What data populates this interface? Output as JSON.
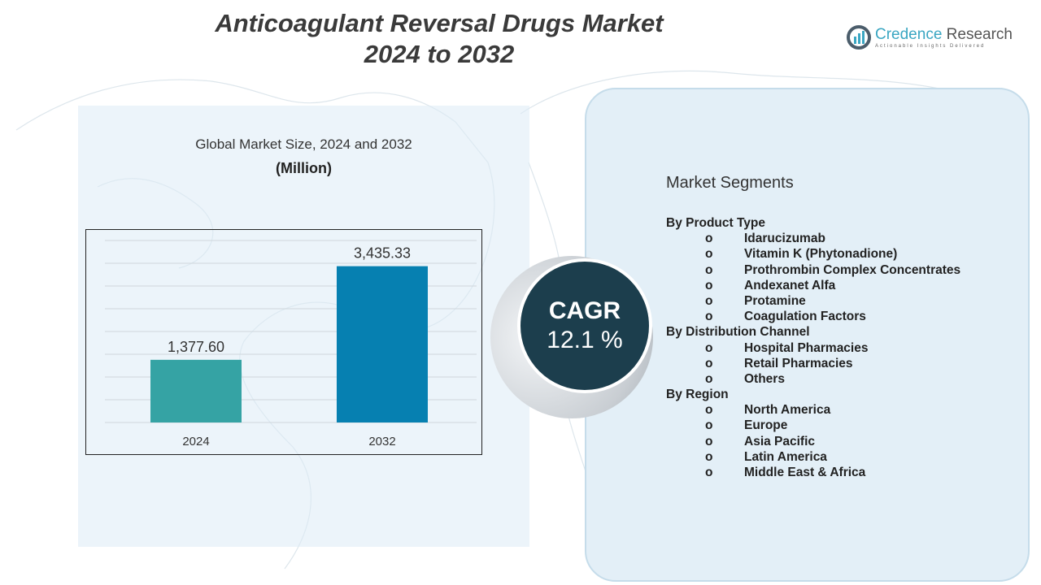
{
  "header": {
    "title_line1": "Anticoagulant Reversal Drugs Market",
    "title_line2": "2024 to 2032"
  },
  "logo": {
    "name_part1": "Credence",
    "name_part2": "Research",
    "tagline": "Actionable Insights Delivered"
  },
  "chart_panel": {
    "subtitle": "Global Market Size, 2024 and 2032",
    "unit": "(Million)"
  },
  "chart_data": {
    "type": "bar",
    "title": "Global Market Size, 2024 and 2032",
    "ylabel": "(Million)",
    "categories": [
      "2024",
      "2032"
    ],
    "values": [
      1377.6,
      3435.33
    ],
    "data_labels": [
      "1,377.60",
      "3,435.33"
    ],
    "colors": [
      "#35a3a4",
      "#0680b1"
    ],
    "ylim": [
      0,
      4000
    ],
    "grid": true
  },
  "cagr": {
    "label": "CAGR",
    "value": "12.1 %"
  },
  "segments": {
    "title": "Market Segments",
    "groups": [
      {
        "heading": "By Product Type",
        "items": [
          "Idarucizumab",
          "Vitamin K (Phytonadione)",
          "Prothrombin Complex Concentrates",
          "Andexanet Alfa",
          "Protamine",
          "Coagulation Factors"
        ]
      },
      {
        "heading": "By Distribution Channel",
        "items": [
          "Hospital Pharmacies",
          "Retail Pharmacies",
          "Others"
        ]
      },
      {
        "heading": "By Region",
        "items": [
          "North America",
          "Europe",
          "Asia Pacific",
          "Latin America",
          "Middle East & Africa"
        ]
      }
    ],
    "bullet": "o"
  }
}
